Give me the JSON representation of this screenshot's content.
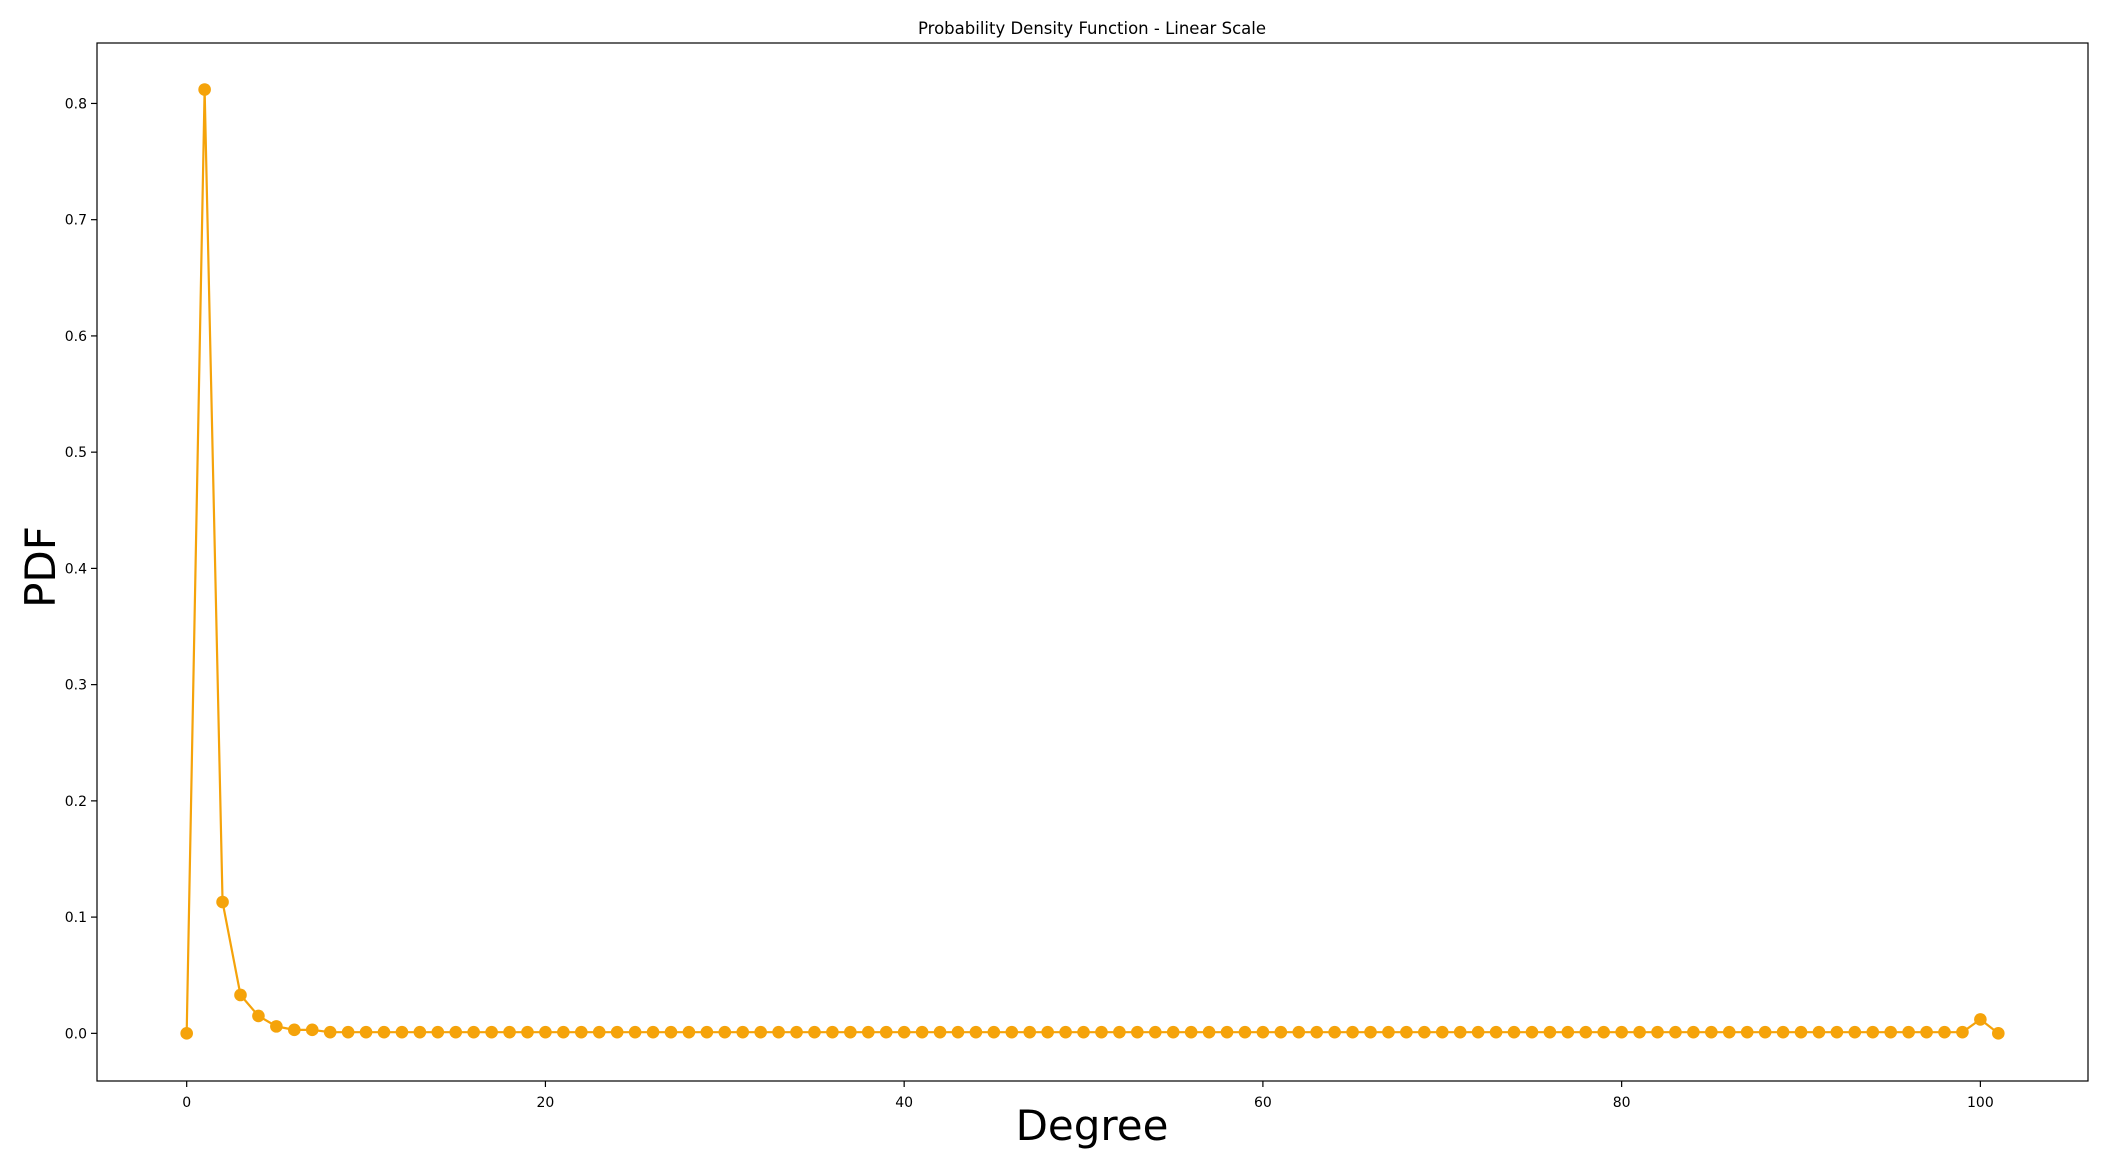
{
  "chart_data": {
    "type": "line",
    "title": "Probability Density Function - Linear Scale",
    "xlabel": "Degree",
    "ylabel": "PDF",
    "xlim": [
      -5,
      106
    ],
    "ylim": [
      -0.041,
      0.852
    ],
    "xticks": [
      0,
      20,
      40,
      60,
      80,
      100
    ],
    "yticks": [
      0.0,
      0.1,
      0.2,
      0.3,
      0.4,
      0.5,
      0.6,
      0.7,
      0.8
    ],
    "grid": false,
    "legend": "none",
    "color": "#f5a30a",
    "marker": "circle",
    "series": [
      {
        "x": [
          0,
          1,
          2,
          3,
          4,
          5,
          6,
          7,
          8,
          9,
          10,
          11,
          12,
          13,
          14,
          15,
          16,
          17,
          18,
          19,
          20,
          21,
          22,
          23,
          24,
          25,
          26,
          27,
          28,
          29,
          30,
          31,
          32,
          33,
          34,
          35,
          36,
          37,
          38,
          39,
          40,
          41,
          42,
          43,
          44,
          45,
          46,
          47,
          48,
          49,
          50,
          51,
          52,
          53,
          54,
          55,
          56,
          57,
          58,
          59,
          60,
          61,
          62,
          63,
          64,
          65,
          66,
          67,
          68,
          69,
          70,
          71,
          72,
          73,
          74,
          75,
          76,
          77,
          78,
          79,
          80,
          81,
          82,
          83,
          84,
          85,
          86,
          87,
          88,
          89,
          90,
          91,
          92,
          93,
          94,
          95,
          96,
          97,
          98,
          99,
          100,
          101
        ],
        "values": [
          0.0,
          0.812,
          0.113,
          0.033,
          0.015,
          0.006,
          0.003,
          0.003,
          0.001,
          0.001,
          0.001,
          0.001,
          0.001,
          0.001,
          0.001,
          0.001,
          0.001,
          0.001,
          0.001,
          0.001,
          0.001,
          0.001,
          0.001,
          0.001,
          0.001,
          0.001,
          0.001,
          0.001,
          0.001,
          0.001,
          0.001,
          0.001,
          0.001,
          0.001,
          0.001,
          0.001,
          0.001,
          0.001,
          0.001,
          0.001,
          0.001,
          0.001,
          0.001,
          0.001,
          0.001,
          0.001,
          0.001,
          0.001,
          0.001,
          0.001,
          0.001,
          0.001,
          0.001,
          0.001,
          0.001,
          0.001,
          0.001,
          0.001,
          0.001,
          0.001,
          0.001,
          0.001,
          0.001,
          0.001,
          0.001,
          0.001,
          0.001,
          0.001,
          0.001,
          0.001,
          0.001,
          0.001,
          0.001,
          0.001,
          0.001,
          0.001,
          0.001,
          0.001,
          0.001,
          0.001,
          0.001,
          0.001,
          0.001,
          0.001,
          0.001,
          0.001,
          0.001,
          0.001,
          0.001,
          0.001,
          0.001,
          0.001,
          0.001,
          0.001,
          0.001,
          0.001,
          0.001,
          0.001,
          0.001,
          0.001,
          0.012,
          0.0
        ]
      }
    ]
  }
}
